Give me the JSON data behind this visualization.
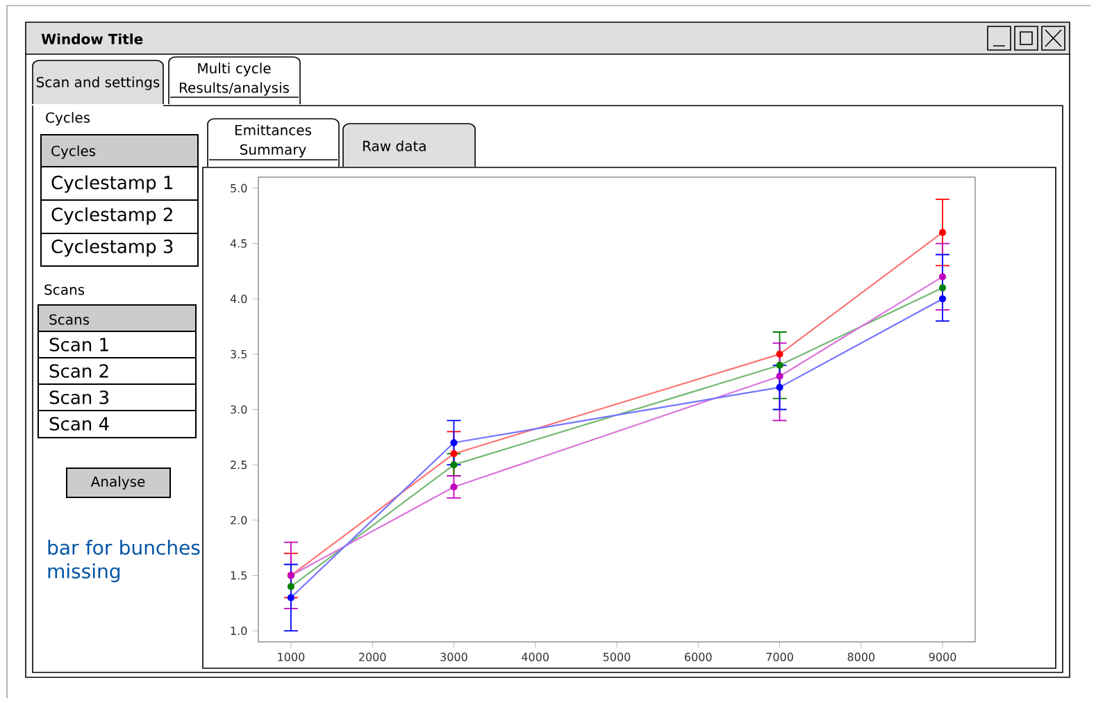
{
  "chart_data": [
    {
      "type": "other",
      "title": "Window Title",
      "annotations": [
        "Scan and settings",
        "Multi cycle Results/analysis",
        "Cycles",
        "Cycles",
        "Cyclestamp 1",
        "Cyclestamp 2",
        "Cyclestamp 3",
        "Scans",
        "Scans",
        "Scan 1",
        "Scan 2",
        "Scan 3",
        "Scan 4",
        "Analyse",
        "Emittances Summary",
        "Raw data"
      ]
    },
    {
      "type": "line",
      "x": [
        1000,
        3000,
        7000,
        9000
      ],
      "series": [
        {
          "color": "#ff0000",
          "values": [
            1.5,
            2.6,
            3.5,
            4.6
          ],
          "errors": [
            0.2,
            0.2,
            null,
            0.3
          ]
        },
        {
          "color": "#008000",
          "values": [
            1.4,
            2.5,
            3.4,
            4.1
          ],
          "errors": [
            null,
            0.1,
            0.3,
            null
          ]
        },
        {
          "color": "#bf00bf",
          "values": [
            1.5,
            2.3,
            3.3,
            4.2
          ],
          "errors": [
            0.3,
            0.1,
            [
              2.9,
              3.6
            ],
            0.3
          ]
        },
        {
          "color": "#0000ff",
          "values": [
            1.3,
            2.7,
            3.2,
            4.0
          ],
          "errors": [
            0.3,
            0.2,
            0.2,
            [
              3.8,
              4.4
            ]
          ]
        }
      ],
      "xlim": [
        600,
        9400
      ],
      "ylim": [
        0.9,
        5.1
      ],
      "xticks": [
        1000,
        2000,
        3000,
        4000,
        5000,
        6000,
        7000,
        8000,
        9000
      ],
      "yticks": [
        {
          "value": 1,
          "label": "1.0"
        },
        1.5,
        {
          "value": 2,
          "label": "2.0"
        },
        2.5,
        {
          "value": 3,
          "label": "3.0"
        },
        3.5,
        {
          "value": 4,
          "label": "4.0"
        },
        4.5,
        {
          "value": 5,
          "label": "5.0"
        }
      ],
      "marker": "circle",
      "annotations": [
        "bar for bunches missing"
      ]
    }
  ]
}
